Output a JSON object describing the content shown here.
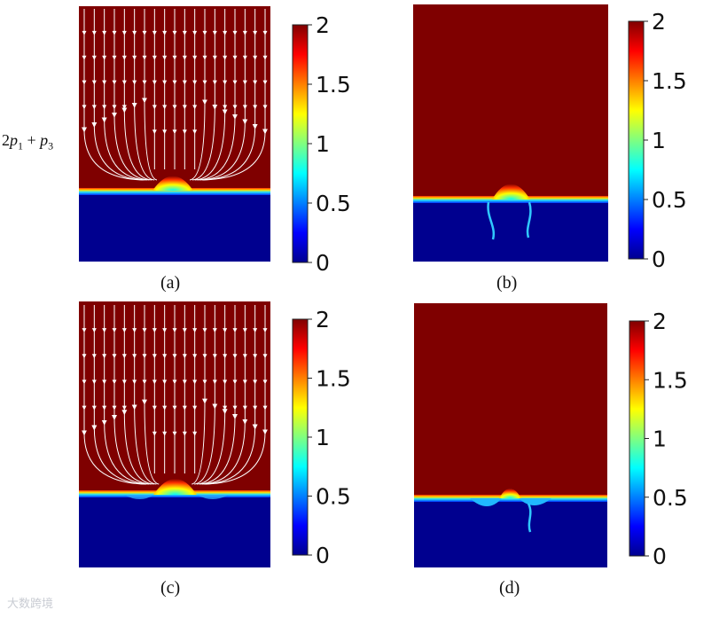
{
  "row_label": {
    "coef": "2",
    "p1": "p",
    "p1_sub": "1",
    "plus": "+",
    "p3": "p",
    "p3_sub": "3"
  },
  "panels": [
    {
      "caption": "(a)",
      "streamlines": true
    },
    {
      "caption": "(b)",
      "streamlines": false
    },
    {
      "caption": "(c)",
      "streamlines": true
    },
    {
      "caption": "(d)",
      "streamlines": false
    }
  ],
  "colorbar": {
    "ticks": [
      "2",
      "1.5",
      "1",
      "0.5",
      "0"
    ],
    "min": 0,
    "max": 2
  },
  "colors": {
    "top_phase": "#7f0000",
    "bottom_phase": "#00008f",
    "streamline": "#ffffff"
  },
  "watermark": "大数跨境"
}
